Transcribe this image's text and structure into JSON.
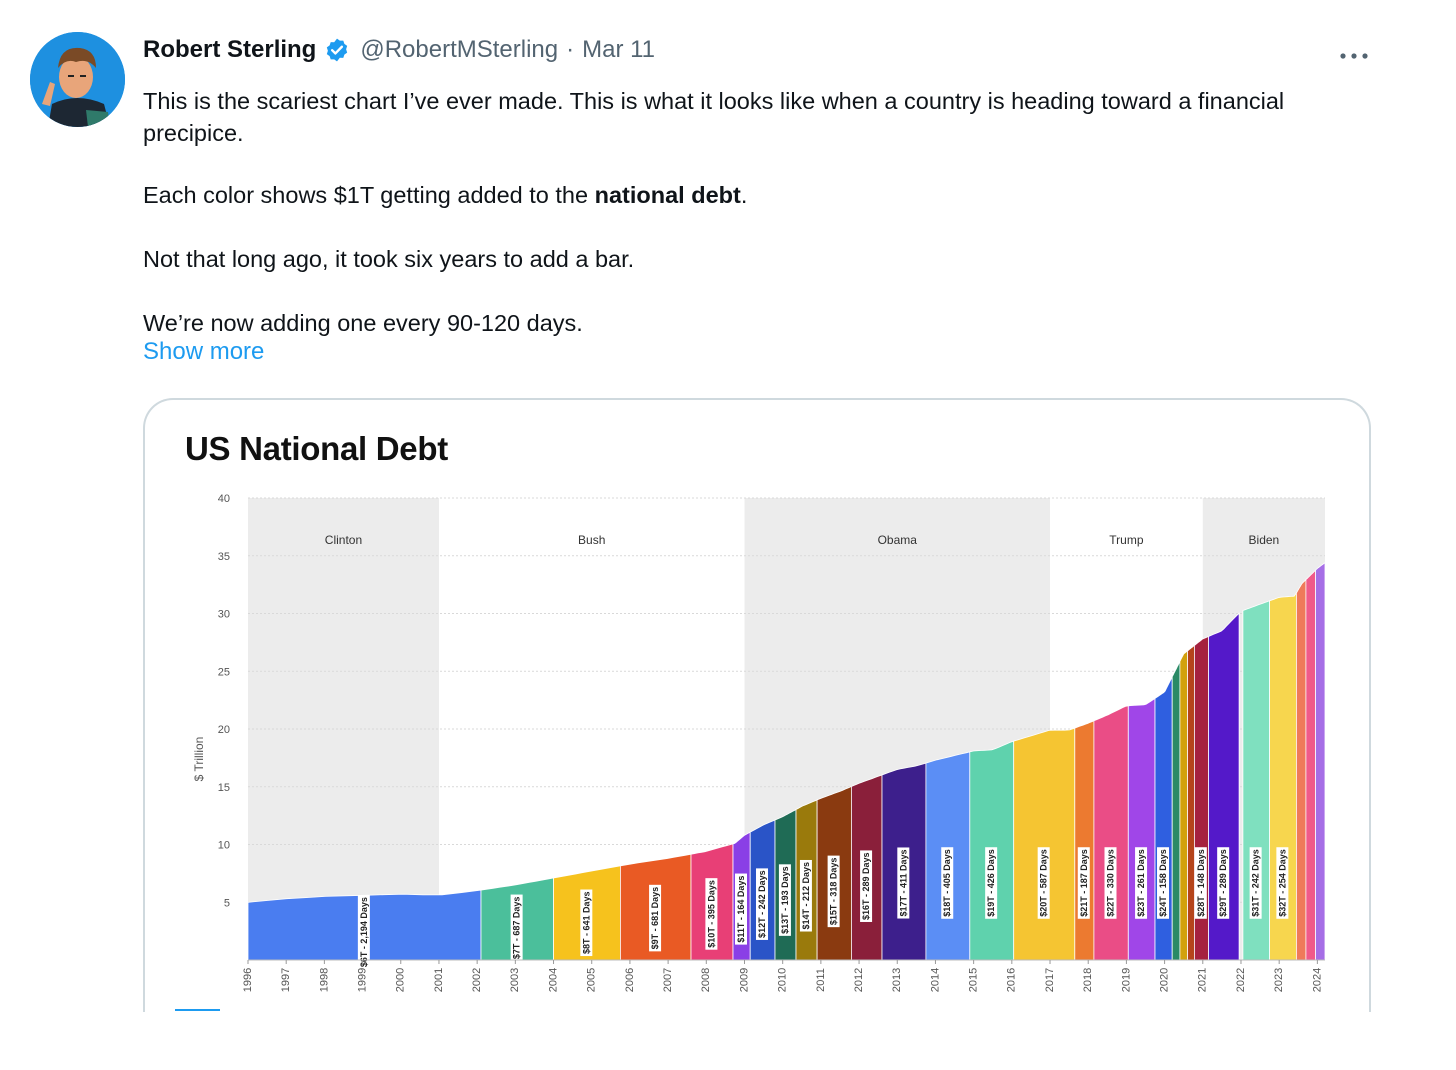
{
  "tweet": {
    "author_name": "Robert Sterling",
    "handle": "@RobertMSterling",
    "separator": "·",
    "date": "Mar 11",
    "paragraphs": [
      {
        "pre": "This is the scariest chart I’ve ever made. This is what it looks like when a country is heading toward a financial",
        "pre2": "precipice."
      },
      {
        "pre": "Each color shows $1T getting added to the ",
        "bold": "national debt",
        "post": "."
      },
      {
        "pre": "Not that long ago, it took six years to add a bar."
      },
      {
        "pre": "We’re now adding one every 90-120 days."
      }
    ],
    "show_more": "Show more",
    "icons": {
      "verified": "verified-badge-icon",
      "more": "more-options-icon",
      "avatar": "avatar"
    },
    "colors": {
      "link": "#1d9bf0",
      "verified": "#1d9bf0",
      "muted": "#536471"
    }
  },
  "chart_data": {
    "type": "area",
    "title": "US National Debt",
    "ylabel": "$ Trillion",
    "xlabel": "",
    "ylim": [
      0,
      40
    ],
    "yticks": [
      5,
      10,
      15,
      20,
      25,
      30,
      35,
      40
    ],
    "xlim": [
      1996,
      2024.2
    ],
    "xticks": [
      "1996",
      "1997",
      "1998",
      "1999",
      "2000",
      "2001",
      "2002",
      "2003",
      "2004",
      "2005",
      "2006",
      "2007",
      "2008",
      "2009",
      "2010",
      "2011",
      "2012",
      "2013",
      "2014",
      "2015",
      "2016",
      "2017",
      "2018",
      "2019",
      "2020",
      "2021",
      "2022",
      "2023",
      "2024"
    ],
    "presidencies": [
      {
        "name": "Clinton",
        "start": 1996,
        "end": 2001,
        "shaded": true
      },
      {
        "name": "Bush",
        "start": 2001,
        "end": 2009,
        "shaded": false
      },
      {
        "name": "Obama",
        "start": 2009,
        "end": 2017,
        "shaded": true
      },
      {
        "name": "Trump",
        "start": 2017,
        "end": 2021,
        "shaded": false
      },
      {
        "name": "Biden",
        "start": 2021,
        "end": 2024.2,
        "shaded": true
      }
    ],
    "debt_curve": [
      [
        1996,
        5.0
      ],
      [
        1997,
        5.3
      ],
      [
        1998,
        5.5
      ],
      [
        1999,
        5.6
      ],
      [
        2000,
        5.7
      ],
      [
        2001,
        5.6
      ],
      [
        2002,
        6.0
      ],
      [
        2003,
        6.5
      ],
      [
        2004,
        7.1
      ],
      [
        2005,
        7.7
      ],
      [
        2006,
        8.3
      ],
      [
        2007,
        8.8
      ],
      [
        2008,
        9.4
      ],
      [
        2008.75,
        10.1
      ],
      [
        2009,
        10.8
      ],
      [
        2009.5,
        11.7
      ],
      [
        2010,
        12.4
      ],
      [
        2010.5,
        13.3
      ],
      [
        2011,
        14.0
      ],
      [
        2011.5,
        14.6
      ],
      [
        2012,
        15.3
      ],
      [
        2012.5,
        15.9
      ],
      [
        2013,
        16.5
      ],
      [
        2013.5,
        16.8
      ],
      [
        2014,
        17.3
      ],
      [
        2014.5,
        17.7
      ],
      [
        2015,
        18.1
      ],
      [
        2015.5,
        18.2
      ],
      [
        2016,
        18.9
      ],
      [
        2016.5,
        19.4
      ],
      [
        2017,
        19.9
      ],
      [
        2017.5,
        19.9
      ],
      [
        2018,
        20.5
      ],
      [
        2018.5,
        21.2
      ],
      [
        2019,
        22.0
      ],
      [
        2019.5,
        22.1
      ],
      [
        2020,
        23.2
      ],
      [
        2020.5,
        26.5
      ],
      [
        2021,
        27.8
      ],
      [
        2021.5,
        28.5
      ],
      [
        2022,
        30.2
      ],
      [
        2022.5,
        30.8
      ],
      [
        2023,
        31.4
      ],
      [
        2023.4,
        31.5
      ],
      [
        2023.6,
        32.6
      ],
      [
        2024,
        33.9
      ],
      [
        2024.2,
        34.4
      ]
    ],
    "segments": [
      {
        "label": "$6T - 2,194 Days",
        "start": 1996,
        "end": 2002.1,
        "color": "#4a7df0"
      },
      {
        "label": "$7T - 687 Days",
        "start": 2002.1,
        "end": 2004.0,
        "color": "#4bbf9b"
      },
      {
        "label": "$8T - 641 Days",
        "start": 2004.0,
        "end": 2005.75,
        "color": "#f6c21d"
      },
      {
        "label": "$9T - 681 Days",
        "start": 2005.75,
        "end": 2007.6,
        "color": "#e95a24"
      },
      {
        "label": "$10T - 395 Days",
        "start": 2007.6,
        "end": 2008.7,
        "color": "#e83f76"
      },
      {
        "label": "$11T - 164 Days",
        "start": 2008.7,
        "end": 2009.15,
        "color": "#8a3fe6"
      },
      {
        "label": "$12T - 242 Days",
        "start": 2009.15,
        "end": 2009.8,
        "color": "#2a54c7"
      },
      {
        "label": "$13T - 193 Days",
        "start": 2009.8,
        "end": 2010.35,
        "color": "#1f6b55"
      },
      {
        "label": "$14T - 212 Days",
        "start": 2010.35,
        "end": 2010.9,
        "color": "#9a7a0c"
      },
      {
        "label": "$15T - 318 Days",
        "start": 2010.9,
        "end": 2011.8,
        "color": "#8a3a10"
      },
      {
        "label": "$16T - 289 Days",
        "start": 2011.8,
        "end": 2012.6,
        "color": "#8a1f3a"
      },
      {
        "label": "$17T - 411 Days",
        "start": 2012.6,
        "end": 2013.75,
        "color": "#3d1f8c"
      },
      {
        "label": "$18T - 405 Days",
        "start": 2013.75,
        "end": 2014.9,
        "color": "#5b8ef5"
      },
      {
        "label": "$19T - 426 Days",
        "start": 2014.9,
        "end": 2016.05,
        "color": "#5fd2ad"
      },
      {
        "label": "$20T - 587 Days",
        "start": 2016.05,
        "end": 2017.65,
        "color": "#f5c532"
      },
      {
        "label": "$21T - 187 Days",
        "start": 2017.65,
        "end": 2018.15,
        "color": "#ec7a30"
      },
      {
        "label": "$22T - 330 Days",
        "start": 2018.15,
        "end": 2019.05,
        "color": "#ea4d86"
      },
      {
        "label": "$23T - 261 Days",
        "start": 2019.05,
        "end": 2019.75,
        "color": "#a046e8"
      },
      {
        "label": "$24T - 158 Days",
        "start": 2019.75,
        "end": 2020.2,
        "color": "#2f5fe0"
      },
      {
        "label": "",
        "start": 2020.2,
        "end": 2020.4,
        "color": "#2a8a66"
      },
      {
        "label": "",
        "start": 2020.4,
        "end": 2020.6,
        "color": "#d2a10d"
      },
      {
        "label": "",
        "start": 2020.6,
        "end": 2020.78,
        "color": "#b5441b"
      },
      {
        "label": "$28T - 148 Days",
        "start": 2020.78,
        "end": 2021.15,
        "color": "#a5213f"
      },
      {
        "label": "$29T - 289 Days",
        "start": 2021.15,
        "end": 2021.95,
        "color": "#5419c9"
      },
      {
        "label": "$31T - 242 Days",
        "start": 2022.05,
        "end": 2022.75,
        "color": "#7fe0bf"
      },
      {
        "label": "$32T - 254 Days",
        "start": 2022.75,
        "end": 2023.45,
        "color": "#f7d64e"
      },
      {
        "label": "",
        "start": 2023.45,
        "end": 2023.7,
        "color": "#ef7a5a"
      },
      {
        "label": "",
        "start": 2023.7,
        "end": 2023.95,
        "color": "#f05a8a"
      },
      {
        "label": "",
        "start": 2023.95,
        "end": 2024.2,
        "color": "#a66ee6"
      }
    ],
    "grid": true,
    "legend": "none"
  }
}
